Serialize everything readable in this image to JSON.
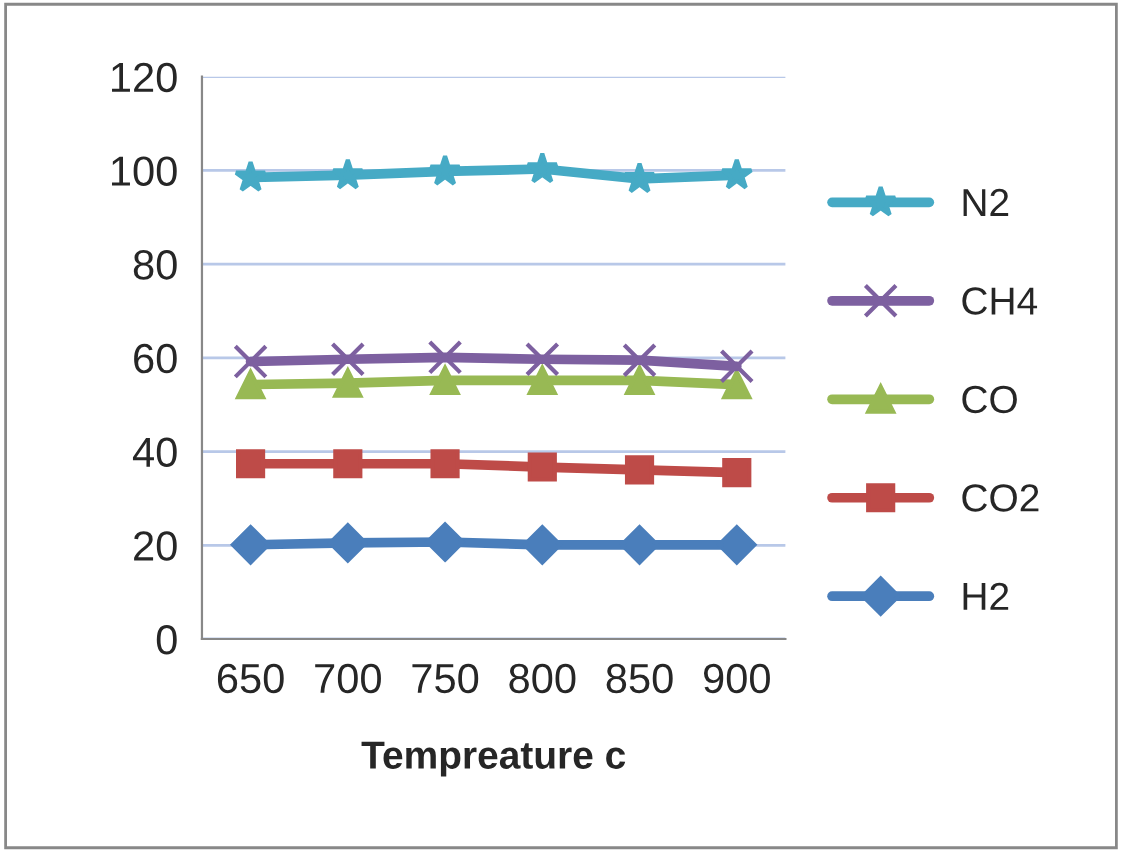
{
  "chart_data": {
    "type": "line",
    "xlabel": "Tempreature c",
    "categories": [
      "650",
      "700",
      "750",
      "800",
      "850",
      "900"
    ],
    "series": [
      {
        "name": "H2",
        "color": "#4a7ebb",
        "marker": "diamond",
        "values": [
          20.1,
          20.5,
          20.7,
          20.1,
          20.1,
          20.1
        ]
      },
      {
        "name": "CO2",
        "color": "#be4b48",
        "marker": "square",
        "values": [
          37.4,
          37.4,
          37.4,
          36.7,
          36.1,
          35.5
        ]
      },
      {
        "name": "CO",
        "color": "#98b954",
        "marker": "triangle",
        "values": [
          54.3,
          54.6,
          55.2,
          55.2,
          55.2,
          54.3
        ]
      },
      {
        "name": "CH4",
        "color": "#7d60a0",
        "marker": "cross",
        "values": [
          59.2,
          59.7,
          60.1,
          59.7,
          59.5,
          58.2
        ]
      },
      {
        "name": "N2",
        "color": "#46aac5",
        "marker": "star",
        "values": [
          98.5,
          99.0,
          99.8,
          100.3,
          98.2,
          99.0
        ]
      }
    ],
    "ylim": [
      0,
      120
    ],
    "yticks": [
      0,
      20,
      40,
      60,
      80,
      100,
      120
    ],
    "grid": "y",
    "legend": "right"
  }
}
